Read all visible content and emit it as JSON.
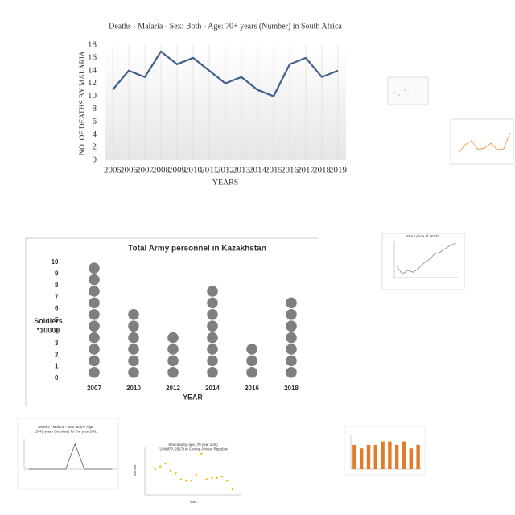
{
  "chart_data": [
    {
      "type": "line",
      "title": "Deaths - Malaria - Sex: Both - Age: 70+ years (Number) in South Africa",
      "xlabel": "YEARS",
      "ylabel": "NO. OF DEATHS BY MALARIA",
      "categories": [
        "2005",
        "2006",
        "2007",
        "2008",
        "2009",
        "2010",
        "2011",
        "2012",
        "2013",
        "2014",
        "2015",
        "2016",
        "2017",
        "2018",
        "2019"
      ],
      "series": [
        {
          "name": null,
          "color": "#3f5f8f",
          "values": [
            11,
            14,
            13,
            17,
            15,
            16,
            14,
            12,
            13,
            11,
            10,
            15,
            16,
            13,
            14
          ]
        }
      ],
      "ylim": [
        0,
        18
      ],
      "yticks": [
        0,
        2,
        4,
        6,
        8,
        10,
        12,
        14,
        16,
        18
      ],
      "grid": true
    },
    {
      "type": "pictograph",
      "title": "Total Army personnel in Kazakhstan",
      "xlabel": "YEAR",
      "ylabel": "Soldiers *10000",
      "categories": [
        "2007",
        "2010",
        "2012",
        "2014",
        "2016",
        "2018"
      ],
      "series": [
        {
          "name": null,
          "color": "#7f7f7f",
          "values": [
            10,
            6,
            4,
            8,
            3,
            7
          ]
        }
      ],
      "ylim": [
        0,
        10
      ],
      "yticks": [
        0,
        1,
        2,
        3,
        4,
        5,
        6,
        7,
        8,
        9,
        10
      ]
    },
    {
      "type": "line",
      "title": "Stock price of AFSD",
      "series": [
        {
          "name": null,
          "color": "#888888",
          "values": [
            3,
            1,
            2,
            1.5,
            2.5,
            4,
            5,
            6.5,
            7,
            8,
            9,
            9.5
          ]
        }
      ],
      "ylim": [
        0,
        10
      ]
    },
    {
      "type": "line",
      "title": "Deaths - Malaria - Sex: Both - Age: 15-49 years (Number) for the year 2001",
      "series": [
        {
          "name": null,
          "color": "#555555",
          "values": [
            0,
            0,
            0,
            0,
            0,
            330,
            0,
            0,
            0,
            0
          ]
        }
      ],
      "ylim": [
        0,
        400
      ]
    },
    {
      "type": "scatter",
      "title": "Sex ratio by age (70 year olds) (UNWPP, 2017) in Central African Republic",
      "xlabel": "Years",
      "ylabel": "Sex Ratio",
      "x": [
        1953,
        1957,
        1961,
        1965,
        1969,
        1973,
        1977,
        1981,
        1985,
        1989,
        1993,
        1997,
        2001,
        2005,
        2009,
        2013
      ],
      "series": [
        {
          "name": null,
          "color": "#f5b800",
          "values": [
            91.9,
            92.0,
            92.1,
            91.85,
            91.75,
            91.55,
            91.5,
            91.5,
            91.7,
            92.45,
            91.55,
            91.6,
            91.6,
            91.65,
            91.5,
            91.2
          ]
        }
      ],
      "xlim": [
        1945,
        2020
      ],
      "ylim": [
        91,
        92.7
      ]
    },
    {
      "type": "bar",
      "series": [
        {
          "name": null,
          "color": "#e07b29",
          "values": [
            7,
            6,
            7,
            7,
            8,
            8,
            7,
            8,
            6,
            7
          ]
        }
      ],
      "ylim": [
        0,
        10
      ]
    }
  ]
}
